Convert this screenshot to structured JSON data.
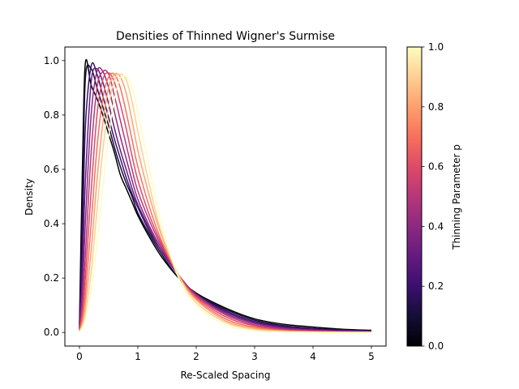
{
  "chart_data": {
    "type": "line",
    "title": "Densities of Thinned Wigner's Surmise",
    "xlabel": "Re-Scaled Spacing",
    "ylabel": "Density",
    "xlim": [
      -0.25,
      5.25
    ],
    "ylim": [
      -0.05,
      1.05
    ],
    "xticks": [
      0,
      1,
      2,
      3,
      4,
      5
    ],
    "yticks": [
      0.0,
      0.2,
      0.4,
      0.6,
      0.8,
      1.0
    ],
    "grid": false,
    "legend": "none",
    "colormap": "magma",
    "colorbar": {
      "label": "Thinning Parameter p",
      "range": [
        0.0,
        1.0
      ],
      "ticks": [
        0.0,
        0.2,
        0.4,
        0.6,
        0.8,
        1.0
      ]
    },
    "series_params": [
      0.0,
      0.1,
      0.2,
      0.3,
      0.4,
      0.5,
      0.6,
      0.7,
      0.8,
      0.9,
      1.0
    ],
    "x": [
      0,
      0.05,
      0.1,
      0.2,
      0.3,
      0.4,
      0.5,
      0.6,
      0.7,
      0.8,
      0.9,
      1.0,
      1.2,
      1.4,
      1.7,
      2.0,
      2.5,
      3.0,
      3.5,
      4.0,
      4.5,
      5.0
    ],
    "series": [
      {
        "p": 0.0,
        "values": [
          0.03,
          0.6,
          0.99,
          0.91,
          0.86,
          0.8,
          0.73,
          0.66,
          0.58,
          0.53,
          0.48,
          0.43,
          0.35,
          0.28,
          0.2,
          0.145,
          0.09,
          0.05,
          0.03,
          0.02,
          0.012,
          0.008
        ]
      },
      {
        "p": 0.1,
        "values": [
          0.02,
          0.45,
          0.93,
          0.97,
          0.9,
          0.83,
          0.76,
          0.68,
          0.61,
          0.55,
          0.5,
          0.44,
          0.36,
          0.29,
          0.2,
          0.14,
          0.085,
          0.045,
          0.025,
          0.015,
          0.01,
          0.006
        ]
      },
      {
        "p": 0.2,
        "values": [
          0.015,
          0.32,
          0.75,
          0.98,
          0.95,
          0.87,
          0.79,
          0.71,
          0.64,
          0.57,
          0.51,
          0.46,
          0.37,
          0.3,
          0.21,
          0.14,
          0.08,
          0.04,
          0.022,
          0.013,
          0.008,
          0.005
        ]
      },
      {
        "p": 0.3,
        "values": [
          0.012,
          0.22,
          0.55,
          0.92,
          0.97,
          0.92,
          0.84,
          0.75,
          0.67,
          0.6,
          0.53,
          0.47,
          0.38,
          0.3,
          0.21,
          0.14,
          0.075,
          0.037,
          0.018,
          0.01,
          0.006,
          0.004
        ]
      },
      {
        "p": 0.4,
        "values": [
          0.01,
          0.15,
          0.4,
          0.8,
          0.96,
          0.96,
          0.9,
          0.81,
          0.72,
          0.64,
          0.56,
          0.49,
          0.39,
          0.31,
          0.21,
          0.14,
          0.07,
          0.033,
          0.015,
          0.008,
          0.005,
          0.003
        ]
      },
      {
        "p": 0.5,
        "values": [
          0.008,
          0.1,
          0.28,
          0.66,
          0.9,
          0.96,
          0.95,
          0.87,
          0.78,
          0.69,
          0.6,
          0.52,
          0.41,
          0.32,
          0.21,
          0.135,
          0.065,
          0.028,
          0.012,
          0.006,
          0.003,
          0.002
        ]
      },
      {
        "p": 0.6,
        "values": [
          0.006,
          0.07,
          0.2,
          0.52,
          0.8,
          0.93,
          0.955,
          0.92,
          0.84,
          0.75,
          0.65,
          0.56,
          0.43,
          0.33,
          0.21,
          0.13,
          0.058,
          0.024,
          0.009,
          0.004,
          0.002,
          0.001
        ]
      },
      {
        "p": 0.7,
        "values": [
          0.005,
          0.05,
          0.14,
          0.4,
          0.68,
          0.86,
          0.94,
          0.95,
          0.9,
          0.81,
          0.71,
          0.61,
          0.46,
          0.34,
          0.21,
          0.125,
          0.05,
          0.019,
          0.007,
          0.003,
          0.001,
          0.001
        ]
      },
      {
        "p": 0.8,
        "values": [
          0.004,
          0.035,
          0.1,
          0.3,
          0.56,
          0.77,
          0.9,
          0.95,
          0.94,
          0.88,
          0.78,
          0.67,
          0.5,
          0.36,
          0.21,
          0.12,
          0.043,
          0.015,
          0.005,
          0.002,
          0.001,
          0.0
        ]
      },
      {
        "p": 0.9,
        "values": [
          0.003,
          0.025,
          0.07,
          0.22,
          0.45,
          0.67,
          0.83,
          0.93,
          0.95,
          0.93,
          0.85,
          0.74,
          0.54,
          0.37,
          0.21,
          0.11,
          0.037,
          0.011,
          0.003,
          0.001,
          0.0,
          0.0
        ]
      },
      {
        "p": 1.0,
        "values": [
          0.002,
          0.02,
          0.05,
          0.15,
          0.33,
          0.53,
          0.72,
          0.86,
          0.935,
          0.94,
          0.9,
          0.81,
          0.6,
          0.4,
          0.2,
          0.1,
          0.028,
          0.007,
          0.002,
          0.0,
          0.0,
          0.0
        ]
      }
    ]
  }
}
